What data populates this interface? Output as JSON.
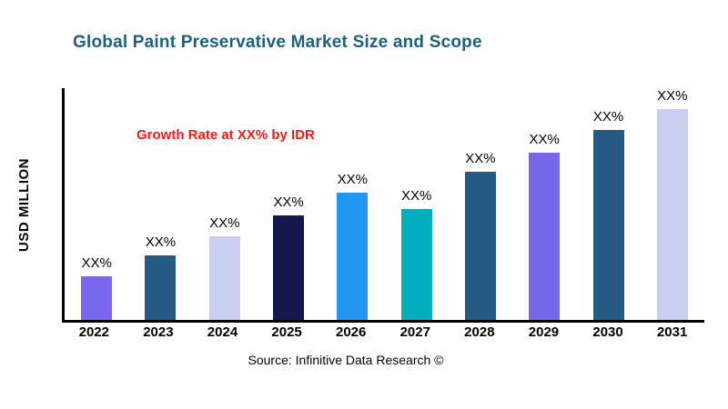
{
  "title": "Global Paint Preservative Market Size and Scope",
  "annotation": "Growth Rate at XX% by IDR",
  "y_axis_label": "USD MILLION",
  "source": "Source: Infinitive Data Research ©",
  "colors": {
    "title": "#1c5f7e",
    "annotation": "#ff1414",
    "axis": "#000000"
  },
  "chart_data": {
    "type": "bar",
    "title": "Global Paint Preservative Market Size and Scope",
    "xlabel": "",
    "ylabel": "USD MILLION",
    "ylim": [
      0,
      100
    ],
    "grid": false,
    "legend": "none",
    "categories": [
      "2022",
      "2023",
      "2024",
      "2025",
      "2026",
      "2027",
      "2028",
      "2029",
      "2030",
      "2031"
    ],
    "values": [
      19,
      28,
      36,
      45,
      55,
      48,
      64,
      72,
      82,
      91
    ],
    "bar_labels": [
      "XX%",
      "XX%",
      "XX%",
      "XX%",
      "XX%",
      "XX%",
      "XX%",
      "XX%",
      "XX%",
      "XX%"
    ],
    "bar_colors": [
      "#7b68ee",
      "#255a83",
      "#c9cef1",
      "#16174f",
      "#2196f3",
      "#00aebd",
      "#255a83",
      "#7668e8",
      "#255a83",
      "#c9cef1"
    ]
  }
}
